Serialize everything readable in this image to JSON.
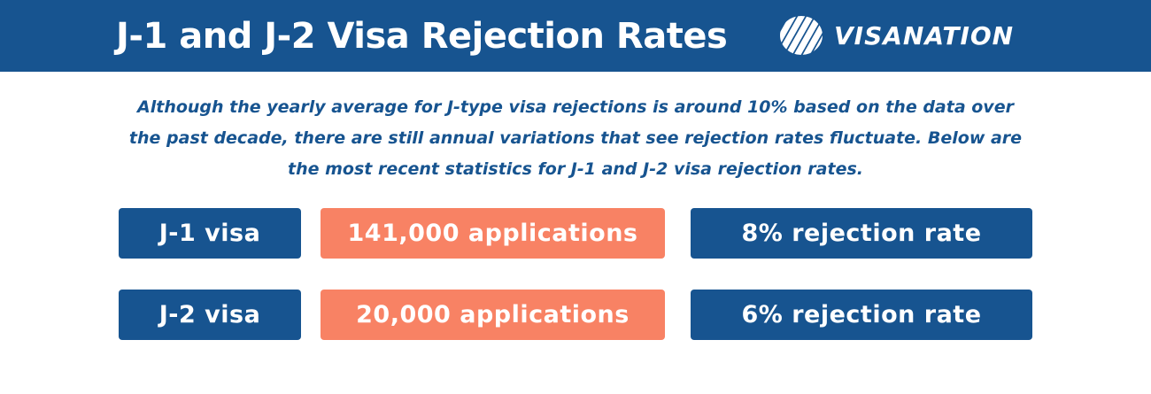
{
  "header": {
    "title": "J-1 and J-2 Visa Rejection Rates",
    "logo_text": "VISANATION",
    "logo_icon": "striped-globe-icon"
  },
  "intro_text": "Although the yearly average for J-type visa rejections is around 10% based on the data over the past decade, there are still annual variations that see rejection rates fluctuate. Below are the most recent statistics for J-1 and J-2 visa rejection rates.",
  "rows": [
    {
      "visa": "J-1 visa",
      "applications": "141,000 applications",
      "rejection": "8% rejection rate"
    },
    {
      "visa": "J-2 visa",
      "applications": "20,000 applications",
      "rejection": "6% rejection rate"
    }
  ],
  "colors": {
    "primary_blue": "#175490",
    "accent_orange": "#f88264",
    "background": "#ffffff"
  }
}
